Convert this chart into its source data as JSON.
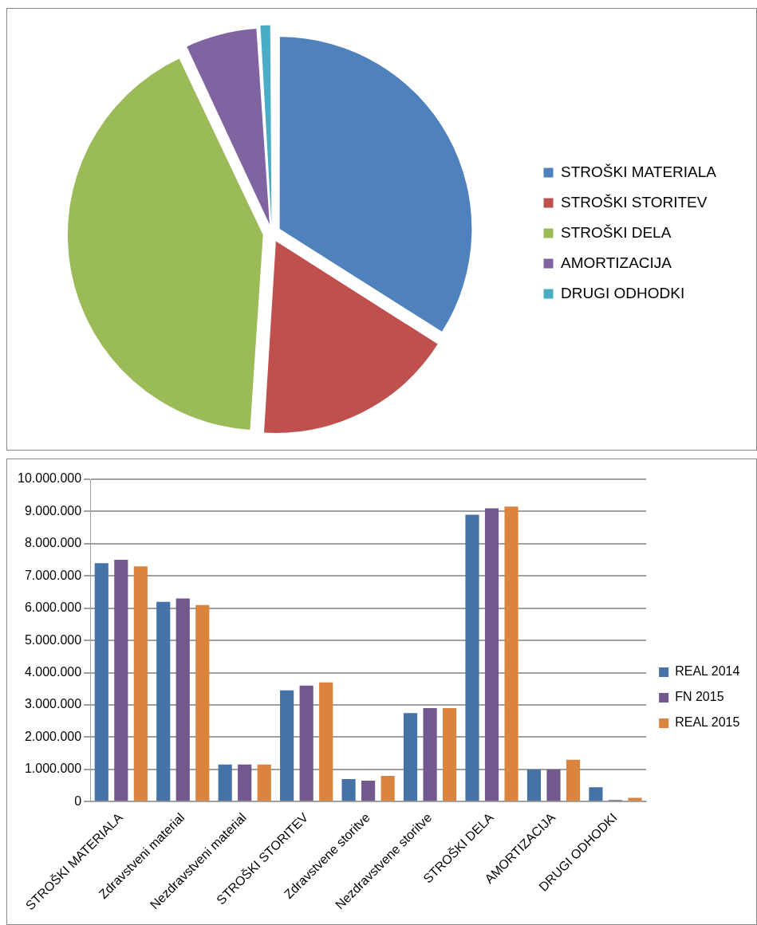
{
  "chart_data": [
    {
      "type": "pie",
      "categories": [
        "STROŠKI MATERIALA",
        "STROŠKI STORITEV",
        "STROŠKI DELA",
        "AMORTIZACIJA",
        "DRUGI ODHODKI"
      ],
      "values": [
        34,
        17,
        42,
        6,
        1
      ],
      "colors": [
        "#4f81bd",
        "#c0504d",
        "#9bbb59",
        "#8064a2",
        "#4bacc6"
      ],
      "legend": "right"
    },
    {
      "type": "bar",
      "categories": [
        "STROŠKI MATERIALA",
        "Zdravstveni material",
        "Nezdravstveni material",
        "STROŠKI STORITEV",
        "Zdravstvene storitve",
        "Nezdravstvene storitve",
        "STROŠKI DELA",
        "AMORTIZACIJA",
        "DRUGI ODHODKI"
      ],
      "series": [
        {
          "name": "REAL 2014",
          "color": "#4572a7",
          "values": [
            7400000,
            6200000,
            1150000,
            3450000,
            700000,
            2750000,
            8900000,
            1000000,
            450000
          ]
        },
        {
          "name": "FN 2015",
          "color": "#71588f",
          "values": [
            7500000,
            6300000,
            1150000,
            3600000,
            650000,
            2900000,
            9100000,
            1000000,
            50000
          ]
        },
        {
          "name": "REAL 2015",
          "color": "#db843d",
          "values": [
            7300000,
            6100000,
            1150000,
            3700000,
            800000,
            2900000,
            9150000,
            1300000,
            120000
          ]
        }
      ],
      "ylim": [
        0,
        10000000
      ],
      "yticks": [
        0,
        {
          "value": 1000000,
          "label": "1.000.000"
        },
        {
          "value": 2000000,
          "label": "2.000.000"
        },
        {
          "value": 3000000,
          "label": "3.000.000"
        },
        {
          "value": 4000000,
          "label": "4.000.000"
        },
        {
          "value": 5000000,
          "label": "5.000.000"
        },
        {
          "value": 6000000,
          "label": "6.000.000"
        },
        {
          "value": 7000000,
          "label": "7.000.000"
        },
        {
          "value": 8000000,
          "label": "8.000.000"
        },
        {
          "value": 9000000,
          "label": "9.000.000"
        },
        {
          "value": 10000000,
          "label": "10.000.000"
        }
      ],
      "grid": "y",
      "legend": "right"
    }
  ]
}
